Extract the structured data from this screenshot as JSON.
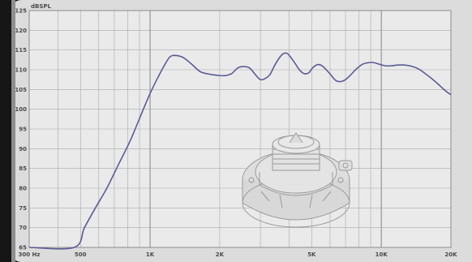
{
  "chart_data": {
    "type": "line",
    "ylabel": "dBSPL",
    "ylim": [
      65,
      125
    ],
    "y_ticks": [
      "125",
      "120",
      "115",
      "110",
      "105",
      "100",
      "95",
      "90",
      "85",
      "80",
      "75",
      "70",
      "65"
    ],
    "xlim": [
      300,
      20000
    ],
    "x_scale": "log",
    "x_tick_labels": [
      {
        "value": 300,
        "label": "300  Hz"
      },
      {
        "value": 500,
        "label": "500"
      },
      {
        "value": 1000,
        "label": "1K"
      },
      {
        "value": 2000,
        "label": "2K"
      },
      {
        "value": 5000,
        "label": "5K"
      },
      {
        "value": 10000,
        "label": "10K"
      },
      {
        "value": 20000,
        "label": "20K"
      }
    ],
    "grid": true,
    "series": [
      {
        "color": "#5b5a96",
        "x": [
          300,
          470,
          520,
          580,
          650,
          730,
          820,
          920,
          1000,
          1080,
          1150,
          1220,
          1300,
          1400,
          1520,
          1650,
          1800,
          1950,
          2100,
          2250,
          2400,
          2550,
          2700,
          2850,
          3000,
          3150,
          3300,
          3450,
          3600,
          3750,
          3900,
          4050,
          4250,
          4450,
          4650,
          4850,
          5050,
          5300,
          5550,
          5800,
          6050,
          6350,
          6650,
          7000,
          7400,
          7800,
          8300,
          8800,
          9300,
          9800,
          10400,
          11000,
          11800,
          12600,
          13500,
          14500,
          15500,
          16500,
          17500,
          18500,
          19300,
          20000
        ],
        "y": [
          65,
          65,
          70,
          75,
          80,
          86,
          92,
          99,
          104,
          108,
          111,
          113.3,
          113.6,
          113,
          111.3,
          109.5,
          108.9,
          108.6,
          108.5,
          109,
          110.5,
          110.8,
          110.4,
          108.8,
          107.5,
          107.8,
          108.8,
          111,
          112.8,
          114,
          114.2,
          113.2,
          111.5,
          109.8,
          109,
          109.2,
          110.5,
          111.3,
          111,
          109.9,
          108.7,
          107.3,
          107,
          107.5,
          108.8,
          110.2,
          111.4,
          111.8,
          111.8,
          111.4,
          111,
          111,
          111.2,
          111.2,
          110.9,
          110.2,
          109,
          107.8,
          106.5,
          105.2,
          104.3,
          103.7
        ]
      }
    ]
  }
}
